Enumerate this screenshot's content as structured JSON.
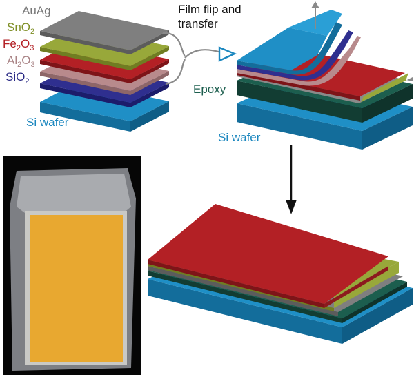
{
  "labels": {
    "auag": "AuAg",
    "sno2": {
      "base": "SnO",
      "sub": "2"
    },
    "fe2o3": {
      "p1": "Fe",
      "s1": "2",
      "p2": "O",
      "s2": "3"
    },
    "al2o3": {
      "p1": "Al",
      "s1": "2",
      "p2": "O",
      "s2": "3"
    },
    "sio2": {
      "base": "SiO",
      "sub": "2"
    },
    "si_wafer_left": "Si wafer",
    "film_flip_line1": "Film flip and",
    "film_flip_line2": "transfer",
    "epoxy": "Epoxy",
    "si_wafer_right": "Si wafer"
  },
  "colors": {
    "auag": "#7f7f7f",
    "sno2": "#98a83a",
    "fe2o3": "#b32025",
    "al2o3": "#b88a8c",
    "sio2": "#2f2f8f",
    "si_wafer": "#1f8fc6",
    "epoxy": "#1c5e4e",
    "label_gray": "#777777",
    "label_sno2": "#7f8f26",
    "label_fe2o3": "#b32025",
    "label_al2o3": "#a98385",
    "label_sio2": "#2a2a85",
    "label_si": "#1b87bf",
    "label_epoxy": "#1c5e4e",
    "photo_sample": "#e3a028"
  }
}
